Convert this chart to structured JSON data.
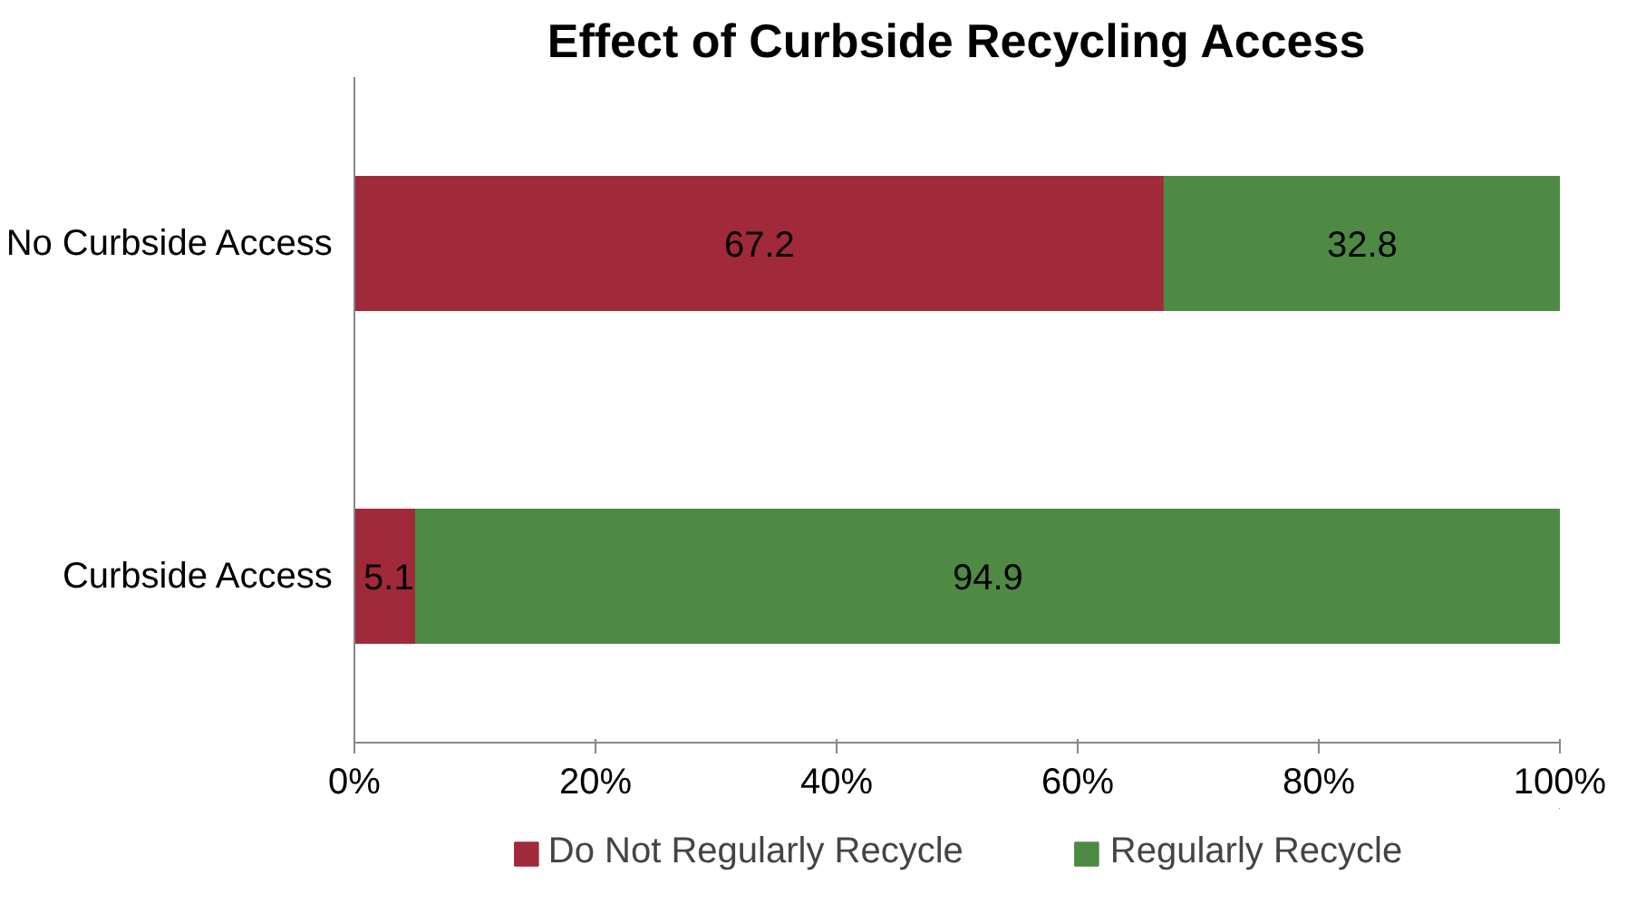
{
  "chart_data": {
    "type": "bar",
    "orientation": "horizontal",
    "stacked": true,
    "title": "Effect of Curbside Recycling Access",
    "categories": [
      "No Curbside Access",
      "Curbside Access"
    ],
    "series": [
      {
        "name": "Do Not Regularly Recycle",
        "color": "#a0293a",
        "values": [
          67.2,
          5.1
        ]
      },
      {
        "name": "Regularly Recycle",
        "color": "#4e8a43",
        "values": [
          32.8,
          94.9
        ]
      }
    ],
    "xlim": [
      0,
      100
    ],
    "xticks": [
      {
        "value": 0,
        "label": "0%"
      },
      {
        "value": 20,
        "label": "20%"
      },
      {
        "value": 40,
        "label": "40%"
      },
      {
        "value": 60,
        "label": "60%"
      },
      {
        "value": 80,
        "label": "80%"
      },
      {
        "value": 100,
        "label": "100%"
      }
    ],
    "data_labels": true,
    "legend": "bottom",
    "grid": false
  }
}
